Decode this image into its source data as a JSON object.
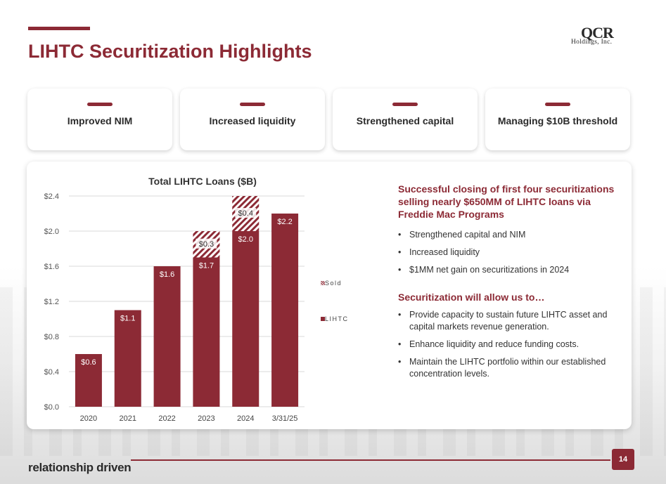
{
  "header": {
    "title": "LIHTC Securitization Highlights",
    "logo_line1": "QCR",
    "logo_line2": "Holdings, Inc."
  },
  "cards": [
    {
      "label": "Improved NIM"
    },
    {
      "label": "Increased liquidity"
    },
    {
      "label": "Strengthened capital"
    },
    {
      "label": "Managing $10B threshold"
    }
  ],
  "chart_data": {
    "type": "bar",
    "title": "Total LIHTC Loans ($B)",
    "categories": [
      "2020",
      "2021",
      "2022",
      "2023",
      "2024",
      "3/31/25"
    ],
    "series": [
      {
        "name": "LIHTC",
        "values": [
          0.6,
          1.1,
          1.6,
          1.7,
          2.0,
          2.2
        ],
        "labels": [
          "$0.6",
          "$1.1",
          "$1.6",
          "$1.7",
          "$2.0",
          "$2.2"
        ]
      },
      {
        "name": "Sold",
        "values": [
          0,
          0,
          0,
          0.3,
          0.4,
          0
        ],
        "labels": [
          "",
          "",
          "",
          "$0.3",
          "$0.4",
          ""
        ]
      }
    ],
    "y_ticks": [
      "$0.0",
      "$0.4",
      "$0.8",
      "$1.2",
      "$1.6",
      "$2.0",
      "$2.4"
    ],
    "ylim": [
      0,
      2.4
    ],
    "legend": [
      "Sold",
      "LIHTC"
    ],
    "legend_position": "right",
    "grid": true
  },
  "right_panel": {
    "heading1": "Successful closing of first four securitizations selling nearly $650MM of LIHTC loans via Freddie Mac Programs",
    "list1": [
      "Strengthened capital and NIM",
      "Increased liquidity",
      "$1MM net gain on securitizations in 2024"
    ],
    "heading2": "Securitization will allow us to…",
    "list2": [
      "Provide capacity to sustain future LIHTC asset and capital markets revenue generation.",
      "Enhance liquidity and reduce funding costs.",
      "Maintain the LIHTC portfolio within our established concentration levels."
    ],
    "bullet": "•"
  },
  "footer": {
    "tagline": "relationship driven",
    "page_number": "14"
  },
  "colors": {
    "accent": "#8c2a35"
  }
}
